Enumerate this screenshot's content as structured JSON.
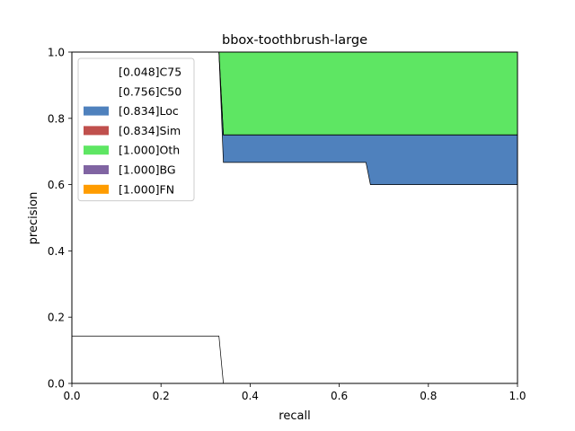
{
  "chart_data": {
    "type": "area",
    "title": "bbox-toothbrush-large",
    "xlabel": "recall",
    "ylabel": "precision",
    "xlim": [
      0,
      1
    ],
    "ylim": [
      0,
      1
    ],
    "xticks": [
      "0.0",
      "0.2",
      "0.4",
      "0.6",
      "0.8",
      "1.0"
    ],
    "yticks": [
      "0.0",
      "0.2",
      "0.4",
      "0.6",
      "0.8",
      "1.0"
    ],
    "grid": false,
    "legend_position": "top-left",
    "series": [
      {
        "name": "[0.048]C75",
        "color": "#ffffff",
        "points": [
          [
            0,
            0.143
          ],
          [
            0.33,
            0.143
          ],
          [
            0.34,
            0
          ],
          [
            1.0,
            0
          ]
        ]
      },
      {
        "name": "[0.756]C50",
        "color": "#ffffff",
        "points": [
          [
            0,
            1.0
          ],
          [
            0.33,
            1.0
          ],
          [
            0.34,
            0.667
          ],
          [
            0.66,
            0.667
          ],
          [
            0.67,
            0.6
          ],
          [
            1.0,
            0.6
          ]
        ]
      },
      {
        "name": "[0.834]Loc",
        "color": "#4f81bd",
        "points": [
          [
            0,
            1.0
          ],
          [
            0.33,
            1.0
          ],
          [
            0.34,
            0.75
          ],
          [
            1.0,
            0.75
          ]
        ]
      },
      {
        "name": "[0.834]Sim",
        "color": "#c0504d",
        "points": [
          [
            0,
            1.0
          ],
          [
            0.33,
            1.0
          ],
          [
            0.34,
            0.75
          ],
          [
            1.0,
            0.75
          ]
        ]
      },
      {
        "name": "[1.000]Oth",
        "color": "#5ee663",
        "points": [
          [
            0,
            1.0
          ],
          [
            1.0,
            1.0
          ]
        ]
      },
      {
        "name": "[1.000]BG",
        "color": "#8064a2",
        "points": [
          [
            0,
            1.0
          ],
          [
            1.0,
            1.0
          ]
        ]
      },
      {
        "name": "[1.000]FN",
        "color": "#ff9c00",
        "points": [
          [
            0,
            1.0
          ],
          [
            1.0,
            1.0
          ]
        ]
      }
    ]
  }
}
